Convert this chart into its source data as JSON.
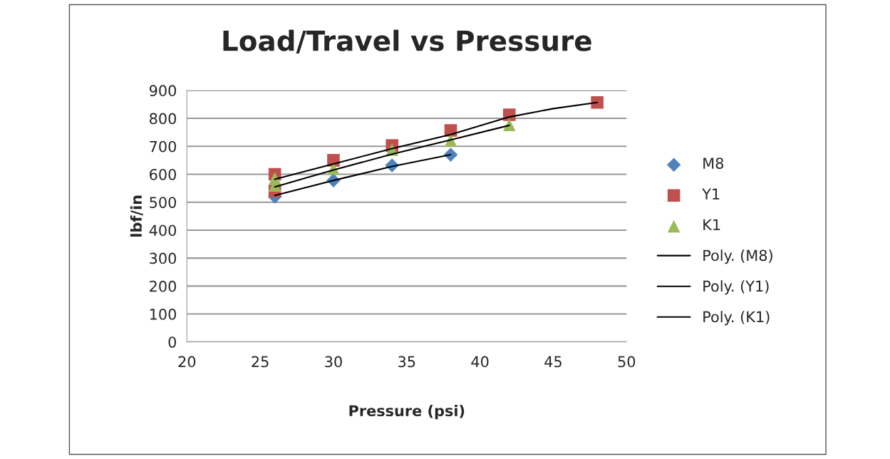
{
  "chart_data": {
    "type": "scatter",
    "title": "Load/Travel vs Pressure",
    "xlabel": "Pressure (psi)",
    "ylabel": "lbf/in",
    "xlim": [
      20,
      50
    ],
    "xticks": [
      20,
      25,
      30,
      35,
      40,
      45,
      50
    ],
    "ylim": [
      0,
      900
    ],
    "yticks": [
      0,
      100,
      200,
      300,
      400,
      500,
      600,
      700,
      800,
      900
    ],
    "grid": "y",
    "legend": "right",
    "series": [
      {
        "name": "M8",
        "marker": "diamond",
        "color": "#4f81bd",
        "x": [
          26,
          30,
          34,
          38
        ],
        "values": [
          520,
          578,
          632,
          670
        ]
      },
      {
        "name": "Y1",
        "marker": "square",
        "color": "#c0504d",
        "x": [
          26,
          26,
          30,
          34,
          38,
          42,
          48
        ],
        "values": [
          600,
          540,
          650,
          703,
          757,
          813,
          857
        ]
      },
      {
        "name": "K1",
        "marker": "triangle",
        "color": "#9bbb59",
        "x": [
          26,
          26,
          30,
          34,
          38,
          42
        ],
        "values": [
          585,
          560,
          620,
          688,
          721,
          777
        ]
      },
      {
        "name": "Poly. (M8)",
        "type": "line",
        "marker": "none",
        "color": "#000000",
        "x": [
          26,
          30,
          34,
          38
        ],
        "values": [
          524,
          578,
          628,
          670
        ]
      },
      {
        "name": "Poly. (Y1)",
        "type": "line",
        "marker": "none",
        "color": "#000000",
        "x": [
          26,
          30,
          34,
          38,
          42,
          45,
          48
        ],
        "values": [
          582,
          637,
          692,
          742,
          805,
          835,
          857
        ]
      },
      {
        "name": "Poly. (K1)",
        "type": "line",
        "marker": "none",
        "color": "#000000",
        "x": [
          26,
          30,
          34,
          38,
          42
        ],
        "values": [
          555,
          615,
          672,
          723,
          775
        ]
      }
    ]
  }
}
